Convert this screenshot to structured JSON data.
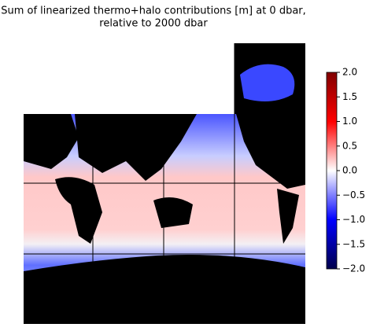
{
  "title_lines": [
    "Sum of linearized thermo+halo contributions [m] at 0 dbar,",
    "relative to 2000 dbar"
  ],
  "colorbar": {
    "clim": [
      -2,
      2
    ],
    "ticks": [
      {
        "value": 2,
        "label": "2.0"
      },
      {
        "value": 1.5,
        "label": "1.5"
      },
      {
        "value": 1,
        "label": "1.0"
      },
      {
        "value": 0.5,
        "label": "0.5"
      },
      {
        "value": 0,
        "label": "0.0"
      },
      {
        "value": -0.5,
        "label": "−0.5"
      },
      {
        "value": -1,
        "label": "−1.0"
      },
      {
        "value": -1.5,
        "label": "−1.5"
      },
      {
        "value": -2,
        "label": "−2.0"
      }
    ]
  }
}
